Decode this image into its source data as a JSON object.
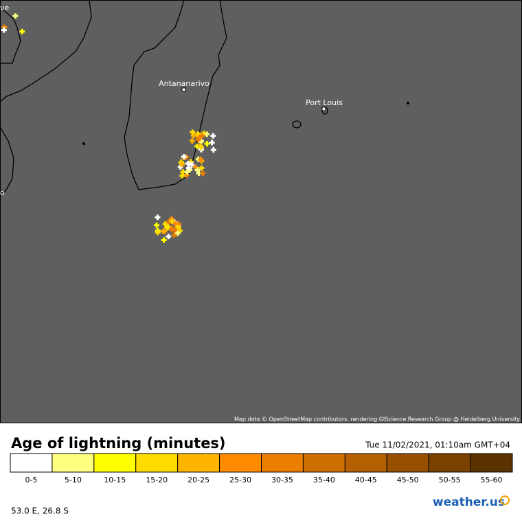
{
  "map": {
    "places": [
      "Antananarivo",
      "Port Louis",
      "ve",
      "o"
    ],
    "attribution": "Map data © OpenStreetMap contributors, rendering GIScience Research Group @ Heidelberg University"
  },
  "legend": {
    "title": "Age of lightning (minutes)",
    "timestamp": "Tue 11/02/2021, 01:10am GMT+04",
    "items": [
      {
        "label": "0-5",
        "color": "#ffffff"
      },
      {
        "label": "5-10",
        "color": "#ffff80"
      },
      {
        "label": "10-15",
        "color": "#ffff00"
      },
      {
        "label": "15-20",
        "color": "#ffdc00"
      },
      {
        "label": "20-25",
        "color": "#ffb400"
      },
      {
        "label": "25-30",
        "color": "#ff8c00"
      },
      {
        "label": "30-35",
        "color": "#eb7d00"
      },
      {
        "label": "35-40",
        "color": "#cd6e00"
      },
      {
        "label": "40-45",
        "color": "#b45f00"
      },
      {
        "label": "45-50",
        "color": "#965000"
      },
      {
        "label": "50-55",
        "color": "#784100"
      },
      {
        "label": "55-60",
        "color": "#5a3200"
      }
    ]
  },
  "footer": {
    "coordinates": "53.0 E, 26.8 S",
    "logo": "weather.us"
  }
}
